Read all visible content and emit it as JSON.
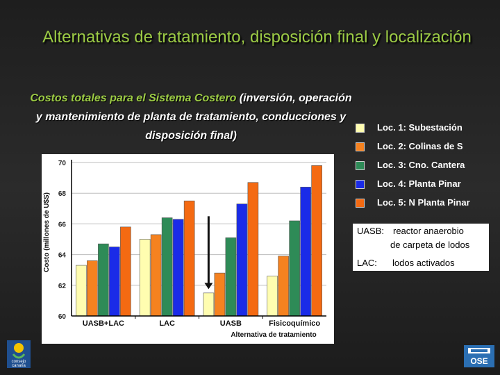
{
  "title": "Alternativas de tratamiento, disposición final y localización",
  "subtitle": {
    "part1": "Costos totales para el Sistema Costero",
    "part2": " (inversión, operación y mantenimiento de planta de tratamiento, conducciones y disposición final)"
  },
  "legend": [
    {
      "label": "Loc. 1: Subestación",
      "color": "#fffdb0"
    },
    {
      "label": "Loc. 2: Colinas de S",
      "color": "#f58220"
    },
    {
      "label": "Loc. 3: Cno. Cantera",
      "color": "#2e8b57"
    },
    {
      "label": "Loc. 4: Planta Pinar",
      "color": "#1a2be8"
    },
    {
      "label": "Loc. 5: N Planta Pinar",
      "color": "#f46a12"
    }
  ],
  "notes": {
    "uasb_label": "UASB:",
    "uasb_text1": "reactor anaerobio",
    "uasb_text2": "de carpeta de lodos",
    "lac_label": "LAC:",
    "lac_text": "lodos activados"
  },
  "logos": {
    "left_text1": "consejo",
    "left_text2": "canaria",
    "right_text": "OSE"
  },
  "chart_data": {
    "type": "bar",
    "categories": [
      "UASB+LAC",
      "LAC",
      "UASB",
      "Fisicoquímico"
    ],
    "series": [
      {
        "name": "Loc. 1: Subestación",
        "color": "#fffdb0",
        "values": [
          63.3,
          65.0,
          61.5,
          62.6
        ]
      },
      {
        "name": "Loc. 2: Colinas de S",
        "color": "#f58220",
        "values": [
          63.6,
          65.3,
          62.8,
          63.9
        ]
      },
      {
        "name": "Loc. 3: Cno. Cantera",
        "color": "#2e8b57",
        "values": [
          64.7,
          66.4,
          65.1,
          66.2
        ]
      },
      {
        "name": "Loc. 4: Planta Pinar",
        "color": "#1a2be8",
        "values": [
          64.5,
          66.3,
          67.3,
          68.4
        ]
      },
      {
        "name": "Loc. 5: N Planta Pinar",
        "color": "#f46a12",
        "values": [
          65.8,
          67.5,
          68.7,
          69.8
        ]
      }
    ],
    "ylabel": "Costo (millones de U$S)",
    "xlabel": "Alternativa de tratamiento",
    "yticks": [
      "60",
      "62",
      "64",
      "66",
      "68",
      "70"
    ],
    "ylim": [
      60,
      70
    ],
    "grid": true,
    "annotation": "arrow pointing down at UASB, Loc. 1"
  }
}
